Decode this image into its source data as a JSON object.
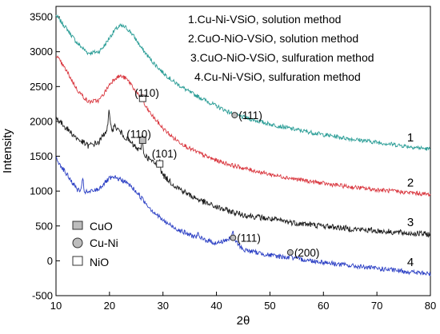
{
  "chart_data": {
    "type": "line",
    "xlabel": "2θ",
    "ylabel": "Intensity",
    "xlim": [
      10,
      80
    ],
    "ylim": [
      -500,
      3650
    ],
    "x_ticks": [
      10,
      20,
      30,
      40,
      50,
      60,
      70,
      80
    ],
    "y_ticks": [
      -500,
      0,
      500,
      1000,
      1500,
      2000,
      2500,
      3000,
      3500
    ],
    "grid": false,
    "legend_placement": "top-right",
    "series": [
      {
        "name": "1.Cu-Ni-VSiO, solution method",
        "label": "1",
        "color": "#2a9d96",
        "x": [
          10,
          12,
          14,
          16,
          18,
          19,
          20,
          21,
          22,
          23,
          24,
          25,
          26,
          28,
          30,
          32,
          35,
          38,
          40,
          43,
          45,
          50,
          55,
          60,
          65,
          70,
          75,
          80
        ],
        "y": [
          3520,
          3330,
          3120,
          2980,
          3000,
          3080,
          3200,
          3310,
          3370,
          3350,
          3280,
          3170,
          3050,
          2860,
          2700,
          2570,
          2420,
          2300,
          2220,
          2110,
          2060,
          1960,
          1880,
          1810,
          1750,
          1700,
          1650,
          1600
        ]
      },
      {
        "name": "2.CuO-NiO-VSiO, solution method",
        "label": "2",
        "color": "#d9363e",
        "x": [
          10,
          12,
          14,
          16,
          18,
          19,
          20,
          21,
          22,
          23,
          24,
          25,
          26,
          28,
          30,
          32,
          35,
          38,
          40,
          43,
          45,
          50,
          55,
          60,
          65,
          70,
          75,
          80
        ],
        "y": [
          2950,
          2720,
          2450,
          2280,
          2300,
          2400,
          2530,
          2620,
          2650,
          2620,
          2540,
          2420,
          2290,
          2080,
          1900,
          1760,
          1610,
          1500,
          1440,
          1370,
          1330,
          1240,
          1170,
          1110,
          1060,
          1020,
          985,
          950
        ]
      },
      {
        "name": "3.CuO-NiO-VSiO, sulfuration method",
        "label": "3",
        "color": "#1a1a1a",
        "x": [
          10,
          12,
          14,
          16,
          18,
          19,
          20,
          21,
          22,
          23,
          24,
          25,
          26,
          28,
          29,
          30,
          32,
          35,
          38,
          40,
          43,
          45,
          50,
          55,
          60,
          65,
          70,
          75,
          80
        ],
        "y": [
          2050,
          1900,
          1750,
          1650,
          1700,
          1820,
          1950,
          1930,
          1850,
          1770,
          1690,
          1620,
          1560,
          1420,
          1370,
          1230,
          1090,
          940,
          830,
          770,
          700,
          660,
          600,
          540,
          500,
          460,
          430,
          400,
          380
        ]
      },
      {
        "name": "4.Cu-Ni-VSiO, sulfuration method",
        "label": "4",
        "color": "#2b3fc4",
        "x": [
          10,
          12,
          14,
          16,
          18,
          19,
          20,
          21,
          22,
          23,
          24,
          25,
          26,
          28,
          30,
          32,
          35,
          38,
          40,
          43,
          45,
          50,
          55,
          60,
          65,
          70,
          75,
          80
        ],
        "y": [
          1470,
          1240,
          1020,
          980,
          1030,
          1110,
          1180,
          1190,
          1170,
          1130,
          1070,
          990,
          900,
          720,
          580,
          480,
          370,
          300,
          250,
          330,
          160,
          80,
          30,
          -20,
          -70,
          -110,
          -150,
          -190
        ]
      }
    ],
    "annotations": [
      {
        "text": "(110)",
        "marker": "NiO",
        "x": 26.2,
        "y": 2330
      },
      {
        "text": "(111)",
        "marker": "Cu-Ni",
        "x": 43.4,
        "y": 2090
      },
      {
        "text": "(110)",
        "marker": "CuO",
        "x": 26.2,
        "y": 1730
      },
      {
        "text": "(101)",
        "marker": "NiO",
        "x": 29.4,
        "y": 1390
      },
      {
        "text": "(111)",
        "marker": "Cu-Ni",
        "x": 43.1,
        "y": 330
      },
      {
        "text": "(200)",
        "marker": "Cu-Ni",
        "x": 53.8,
        "y": 120
      }
    ],
    "marker_legend": [
      {
        "label": "CuO",
        "marker": "filled-square"
      },
      {
        "label": "Cu-Ni",
        "marker": "filled-circle"
      },
      {
        "label": "NiO",
        "marker": "open-square"
      }
    ]
  }
}
